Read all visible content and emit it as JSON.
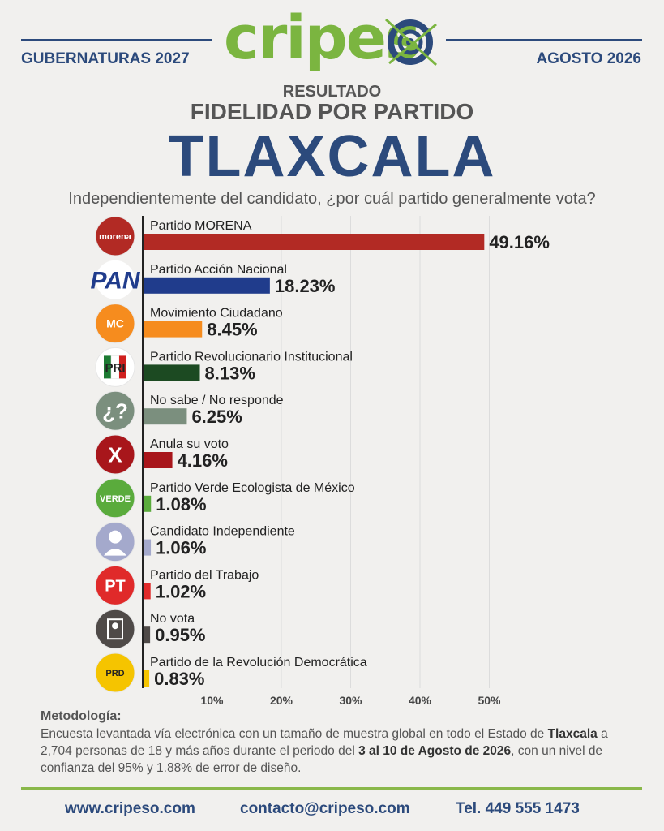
{
  "header": {
    "left": "GUBERNATURAS 2027",
    "right": "AGOSTO 2026",
    "brand_part1": "cripes",
    "brand_part2": "o"
  },
  "titles": {
    "line1": "RESULTADO",
    "line2": "FIDELIDAD POR PARTIDO",
    "line3": "TLAXCALA",
    "question": "Independientemente del candidato, ¿por cuál partido generalmente vota?"
  },
  "chart_data": {
    "type": "bar",
    "orientation": "horizontal",
    "categories": [
      "Partido MORENA",
      "Partido Acción Nacional",
      "Movimiento Ciudadano",
      "Partido Revolucionario Institucional",
      "No sabe / No responde",
      "Anula su voto",
      "Partido Verde Ecologista de México",
      "Candidato Independiente",
      "Partido del Trabajo",
      "No vota",
      "Partido de la Revolución Democrática"
    ],
    "values": [
      49.16,
      18.23,
      8.45,
      8.13,
      6.25,
      4.16,
      1.08,
      1.06,
      1.02,
      0.95,
      0.83
    ],
    "value_labels": [
      "49.16%",
      "18.23%",
      "8.45%",
      "8.13%",
      "6.25%",
      "4.16%",
      "1.08%",
      "1.06%",
      "1.02%",
      "0.95%",
      "0.83%"
    ],
    "colors": [
      "#b22a24",
      "#203c8c",
      "#f68c1e",
      "#1c4a22",
      "#7b8f7e",
      "#a8161b",
      "#5aab3c",
      "#a4a9cc",
      "#e02a2a",
      "#4f4a48",
      "#f5c400"
    ],
    "icons": [
      "morena-logo",
      "pan-logo",
      "mc-logo",
      "pri-logo",
      "question-icon",
      "x-icon",
      "verde-logo",
      "person-icon",
      "pt-logo",
      "no-vote-icon",
      "prd-logo"
    ],
    "icon_texts": [
      "morena",
      "PAN",
      "MC",
      "PRI",
      "¿?",
      "X",
      "VERDE",
      "",
      "PT",
      "",
      "PRD"
    ],
    "x_ticks": [
      10,
      20,
      30,
      40,
      50
    ],
    "x_tick_labels": [
      "10%",
      "20%",
      "30%",
      "40%",
      "50%"
    ],
    "xlim": [
      0,
      50
    ],
    "grid": true,
    "title": "FIDELIDAD POR PARTIDO"
  },
  "methodology": {
    "title": "Metodología:",
    "text1": "Encuesta levantada vía electrónica con un tamaño de muestra global en todo el Estado de ",
    "bold1": "Tlaxcala",
    "text2": " a 2,704 personas de 18 y más años durante el periodo del ",
    "bold2": "3 al 10 de Agosto de 2026",
    "text3": ", con un nivel de confianza del 95% y 1.88% de error de diseño."
  },
  "footer": {
    "website": "www.cripeso.com",
    "email": "contacto@cripeso.com",
    "phone": "Tel. 449 555 1473"
  }
}
